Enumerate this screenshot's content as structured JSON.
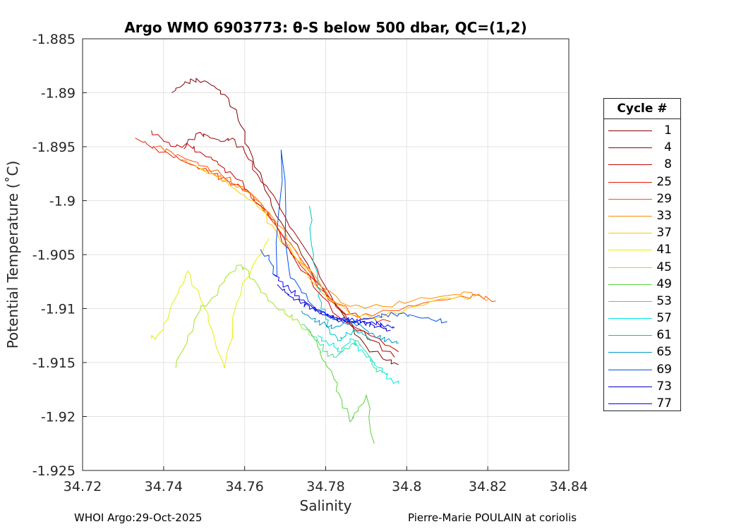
{
  "chart_data": {
    "type": "line",
    "title": "Argo WMO 6903773: θ-S below 500 dbar,  QC=(1,2)",
    "xlabel": "Salinity",
    "ylabel": "Potential Temperature (˚C)",
    "xlim": [
      34.72,
      34.84
    ],
    "ylim": [
      -1.925,
      -1.885
    ],
    "xticks": [
      34.72,
      34.74,
      34.76,
      34.78,
      34.8,
      34.82,
      34.84
    ],
    "xtick_labels": [
      "34.72",
      "34.74",
      "34.76",
      "34.78",
      "34.8",
      "34.82",
      "34.84"
    ],
    "yticks": [
      -1.925,
      -1.92,
      -1.915,
      -1.91,
      -1.905,
      -1.9,
      -1.895,
      -1.89,
      -1.885
    ],
    "ytick_labels": [
      "-1.925",
      "-1.92",
      "-1.915",
      "-1.91",
      "-1.905",
      "-1.9",
      "-1.895",
      "-1.89",
      "-1.885"
    ],
    "grid": true,
    "legend_title": "Cycle #",
    "legend_position": "right-outside",
    "series": [
      {
        "name": "1",
        "color": "#800000",
        "x": [
          34.742,
          34.745,
          34.747,
          34.75,
          34.753,
          34.756,
          34.759,
          34.762,
          34.765,
          34.769,
          34.774,
          34.779,
          34.785,
          34.79,
          34.795,
          34.798
        ],
        "y": [
          -1.89,
          -1.8892,
          -1.8888,
          -1.8889,
          -1.8896,
          -1.8905,
          -1.893,
          -1.896,
          -1.899,
          -1.902,
          -1.905,
          -1.908,
          -1.911,
          -1.9135,
          -1.9148,
          -1.9152
        ]
      },
      {
        "name": "4",
        "color": "#a40000",
        "x": [
          34.745,
          34.748,
          34.751,
          34.754,
          34.757,
          34.76,
          34.763,
          34.766,
          34.77,
          34.775,
          34.78,
          34.786,
          34.792,
          34.797
        ],
        "y": [
          -1.8952,
          -1.8938,
          -1.894,
          -1.8945,
          -1.8942,
          -1.8955,
          -1.8975,
          -1.899,
          -1.9015,
          -1.9045,
          -1.908,
          -1.9115,
          -1.913,
          -1.9145
        ]
      },
      {
        "name": "8",
        "color": "#c80000",
        "x": [
          34.737,
          34.74,
          34.743,
          34.746,
          34.749,
          34.752,
          34.755,
          34.758,
          34.762,
          34.766,
          34.771,
          34.777,
          34.784,
          34.791,
          34.798
        ],
        "y": [
          -1.8935,
          -1.8945,
          -1.895,
          -1.8948,
          -1.8955,
          -1.8962,
          -1.897,
          -1.898,
          -1.8995,
          -1.9015,
          -1.9045,
          -1.908,
          -1.911,
          -1.9125,
          -1.914
        ]
      },
      {
        "name": "25",
        "color": "#e81c00",
        "x": [
          34.733,
          34.736,
          34.74,
          34.744,
          34.748,
          34.752,
          34.756,
          34.76,
          34.764,
          34.768,
          34.773,
          34.778,
          34.784,
          34.79,
          34.796
        ],
        "y": [
          -1.8942,
          -1.8948,
          -1.8955,
          -1.8962,
          -1.8968,
          -1.8975,
          -1.8982,
          -1.899,
          -1.9005,
          -1.9025,
          -1.9055,
          -1.908,
          -1.9102,
          -1.911,
          -1.9112
        ]
      },
      {
        "name": "29",
        "color": "#ff5000",
        "x": [
          34.738,
          34.742,
          34.746,
          34.75,
          34.754,
          34.758,
          34.762,
          34.766,
          34.77,
          34.775,
          34.781,
          34.788,
          34.796,
          34.804,
          34.812,
          34.818,
          34.822
        ],
        "y": [
          -1.895,
          -1.8955,
          -1.8962,
          -1.8968,
          -1.8975,
          -1.8985,
          -1.8995,
          -1.9012,
          -1.9035,
          -1.906,
          -1.909,
          -1.9108,
          -1.9102,
          -1.9095,
          -1.909,
          -1.9088,
          -1.9093
        ]
      },
      {
        "name": "33",
        "color": "#ff8c00",
        "x": [
          34.744,
          34.748,
          34.752,
          34.756,
          34.76,
          34.764,
          34.768,
          34.773,
          34.779,
          34.786,
          34.794,
          34.802,
          34.81,
          34.816,
          34.82
        ],
        "y": [
          -1.8962,
          -1.8968,
          -1.8975,
          -1.8982,
          -1.899,
          -1.9002,
          -1.9022,
          -1.9048,
          -1.908,
          -1.9098,
          -1.9098,
          -1.9092,
          -1.9088,
          -1.9085,
          -1.9092
        ]
      },
      {
        "name": "37",
        "color": "#ffc800",
        "x": [
          34.748,
          34.752,
          34.756,
          34.76,
          34.764,
          34.768,
          34.773,
          34.779,
          34.786,
          34.794,
          34.802,
          34.81,
          34.816
        ],
        "y": [
          -1.8968,
          -1.8975,
          -1.8985,
          -1.8995,
          -1.9008,
          -1.903,
          -1.9055,
          -1.9085,
          -1.9105,
          -1.9108,
          -1.9098,
          -1.909,
          -1.909
        ]
      },
      {
        "name": "41",
        "color": "#e6f000",
        "x": [
          34.737,
          34.738,
          34.741,
          34.744,
          34.746,
          34.749,
          34.752,
          34.755,
          34.758,
          34.762,
          34.766
        ],
        "y": [
          -1.9125,
          -1.9128,
          -1.911,
          -1.908,
          -1.9065,
          -1.909,
          -1.912,
          -1.9155,
          -1.9095,
          -1.906,
          -1.9035
        ]
      },
      {
        "name": "45",
        "color": "#a0e61e",
        "x": [
          34.743,
          34.746,
          34.749,
          34.752,
          34.755,
          34.758,
          34.761,
          34.764,
          34.767,
          34.77,
          34.773,
          34.776
        ],
        "y": [
          -1.9155,
          -1.9125,
          -1.9102,
          -1.909,
          -1.9075,
          -1.906,
          -1.9065,
          -1.9085,
          -1.9095,
          -1.9105,
          -1.911,
          -1.9125
        ]
      },
      {
        "name": "49",
        "color": "#5ad23c",
        "x": [
          34.776,
          34.778,
          34.78,
          34.782,
          34.784,
          34.786,
          34.788,
          34.79,
          34.792
        ],
        "y": [
          -1.912,
          -1.9135,
          -1.915,
          -1.9165,
          -1.9185,
          -1.9205,
          -1.9195,
          -1.918,
          -1.9225
        ]
      },
      {
        "name": "53",
        "color": "#3cdc8c",
        "x": [
          34.774,
          34.776,
          34.778,
          34.78,
          34.782,
          34.784,
          34.786,
          34.788,
          34.79,
          34.792,
          34.794
        ],
        "y": [
          -1.9115,
          -1.912,
          -1.913,
          -1.914,
          -1.9145,
          -1.914,
          -1.9135,
          -1.913,
          -1.914,
          -1.9155,
          -1.916
        ]
      },
      {
        "name": "57",
        "color": "#00e6e6",
        "x": [
          34.778,
          34.78,
          34.782,
          34.784,
          34.786,
          34.788,
          34.79,
          34.792,
          34.794,
          34.796,
          34.798
        ],
        "y": [
          -1.9125,
          -1.913,
          -1.9135,
          -1.914,
          -1.9128,
          -1.9135,
          -1.9145,
          -1.915,
          -1.9158,
          -1.9165,
          -1.917
        ]
      },
      {
        "name": "61",
        "color": "#00c3c3",
        "x": [
          34.776,
          34.777,
          34.778,
          34.779,
          34.78,
          34.781,
          34.783,
          34.785,
          34.787,
          34.789,
          34.791
        ],
        "y": [
          -1.9005,
          -1.905,
          -1.908,
          -1.9095,
          -1.911,
          -1.912,
          -1.913,
          -1.9125,
          -1.912,
          -1.9122,
          -1.913
        ]
      },
      {
        "name": "65",
        "color": "#0096c8",
        "x": [
          34.774,
          34.776,
          34.778,
          34.78,
          34.782,
          34.784,
          34.786,
          34.788,
          34.79,
          34.792,
          34.794,
          34.796,
          34.798
        ],
        "y": [
          -1.9102,
          -1.9108,
          -1.9112,
          -1.9115,
          -1.9118,
          -1.9115,
          -1.9112,
          -1.9115,
          -1.912,
          -1.9125,
          -1.9128,
          -1.913,
          -1.9132
        ]
      },
      {
        "name": "69",
        "color": "#0050e6",
        "x": [
          34.764,
          34.766,
          34.768,
          34.769,
          34.771,
          34.774,
          34.777,
          34.78,
          34.783,
          34.786,
          34.789,
          34.792,
          34.795,
          34.798,
          34.802,
          34.806,
          34.81
        ],
        "y": [
          -1.9045,
          -1.9055,
          -1.907,
          -1.8953,
          -1.9065,
          -1.9085,
          -1.9098,
          -1.9105,
          -1.911,
          -1.9112,
          -1.911,
          -1.9108,
          -1.9106,
          -1.9105,
          -1.9107,
          -1.911,
          -1.9112
        ]
      },
      {
        "name": "73",
        "color": "#0000c8",
        "x": [
          34.768,
          34.77,
          34.772,
          34.774,
          34.776,
          34.778,
          34.78,
          34.782,
          34.784,
          34.786,
          34.788,
          34.79,
          34.792,
          34.794,
          34.796
        ],
        "y": [
          -1.9078,
          -1.9085,
          -1.909,
          -1.9095,
          -1.9098,
          -1.9102,
          -1.9106,
          -1.9109,
          -1.9111,
          -1.9112,
          -1.9113,
          -1.9114,
          -1.9116,
          -1.9118,
          -1.912
        ]
      },
      {
        "name": "77",
        "color": "#0000ff",
        "x": [
          34.767,
          34.769,
          34.771,
          34.773,
          34.775,
          34.777,
          34.779,
          34.781,
          34.783,
          34.785,
          34.787,
          34.789,
          34.791,
          34.793,
          34.795,
          34.797
        ],
        "y": [
          -1.9068,
          -1.9075,
          -1.9082,
          -1.9088,
          -1.9094,
          -1.91,
          -1.9104,
          -1.9107,
          -1.9109,
          -1.911,
          -1.9111,
          -1.9112,
          -1.9113,
          -1.9114,
          -1.9116,
          -1.9118
        ]
      }
    ]
  },
  "footer": {
    "left": "WHOI Argo:29-Oct-2025",
    "right": "Pierre-Marie POULAIN at coriolis"
  }
}
